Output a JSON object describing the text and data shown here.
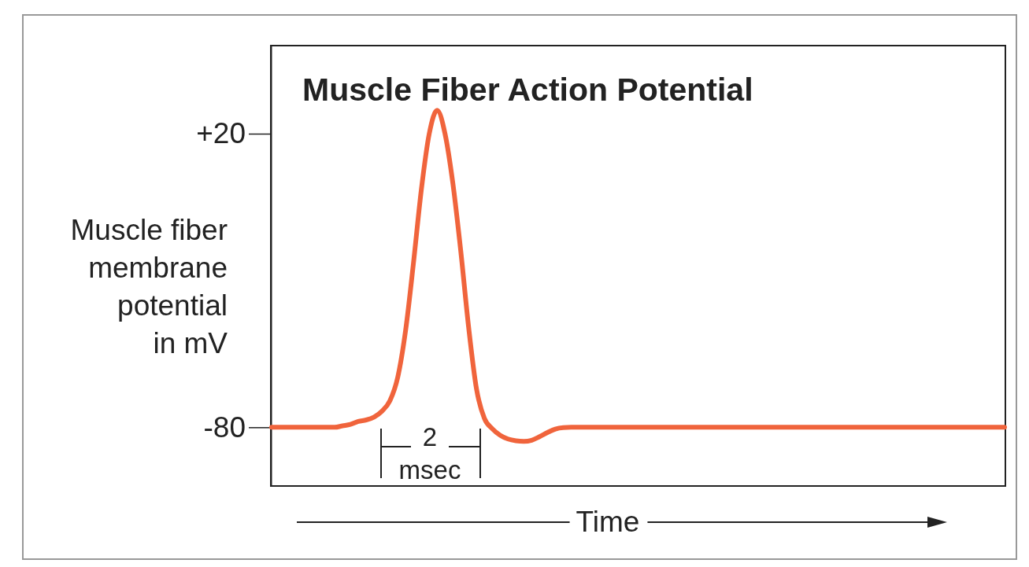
{
  "chart_data": {
    "type": "line",
    "title": "Muscle Fiber Action Potential",
    "ylabel": "Muscle fiber membrane potential in mV",
    "xlabel": "Time",
    "categories": [
      null,
      null,
      null,
      null,
      null,
      null,
      null,
      null,
      null,
      null,
      null,
      null,
      null,
      null,
      null,
      null,
      null,
      null,
      null,
      null,
      null,
      null,
      null,
      null,
      null,
      null,
      null,
      null,
      null,
      null,
      null,
      null,
      null,
      null,
      null,
      null,
      null,
      null,
      null,
      null,
      null,
      null,
      null,
      null,
      null,
      null,
      null,
      null,
      null,
      null,
      null,
      null,
      null,
      null,
      null,
      null,
      null,
      null,
      null,
      null,
      null,
      null,
      null,
      null,
      null,
      null,
      null,
      null,
      null,
      null,
      null,
      null,
      null,
      null,
      null,
      null,
      null,
      null,
      null,
      null,
      null,
      null,
      null,
      null,
      null,
      null,
      null,
      null,
      null,
      null,
      null,
      null,
      null,
      null
    ],
    "series": [
      {
        "color": "#f0643c",
        "values": [
          -80,
          -80,
          -80,
          -80,
          -80,
          -80,
          -80,
          -80,
          -80,
          -79.5,
          -79,
          -78,
          -77.5,
          -76.5,
          -74.5,
          -71,
          -63,
          -47,
          -24,
          1,
          20,
          28,
          20,
          3,
          -20,
          -46,
          -67,
          -77,
          -80.5,
          -82.7,
          -84,
          -84.6,
          -84.8,
          -84.4,
          -83.2,
          -81.8,
          -80.6,
          -80.1,
          -80,
          -80,
          -80,
          -80,
          -80,
          -80,
          -80,
          -80,
          -80,
          -80,
          -80,
          -80,
          -80,
          -80,
          -80,
          -80,
          -80,
          -80,
          -80,
          -80,
          -80,
          -80,
          -80,
          -80,
          -80,
          -80,
          -80,
          -80,
          -80,
          -80,
          -80,
          -80,
          -80,
          -80,
          -80,
          -80,
          -80,
          -80,
          -80,
          -80,
          -80,
          -80,
          -80,
          -80,
          -80,
          -80,
          -80,
          -80,
          -80,
          -80,
          -80,
          -80,
          -80,
          -80,
          -80,
          -80
        ]
      }
    ],
    "ylim": [
      -100,
      50
    ],
    "yticks": [
      {
        "value": 20,
        "label": "+20"
      },
      -80
    ],
    "annotations": [
      "2 msec"
    ],
    "grid": false,
    "marker": "none",
    "line_style": "solid",
    "tick_labels": "y"
  }
}
